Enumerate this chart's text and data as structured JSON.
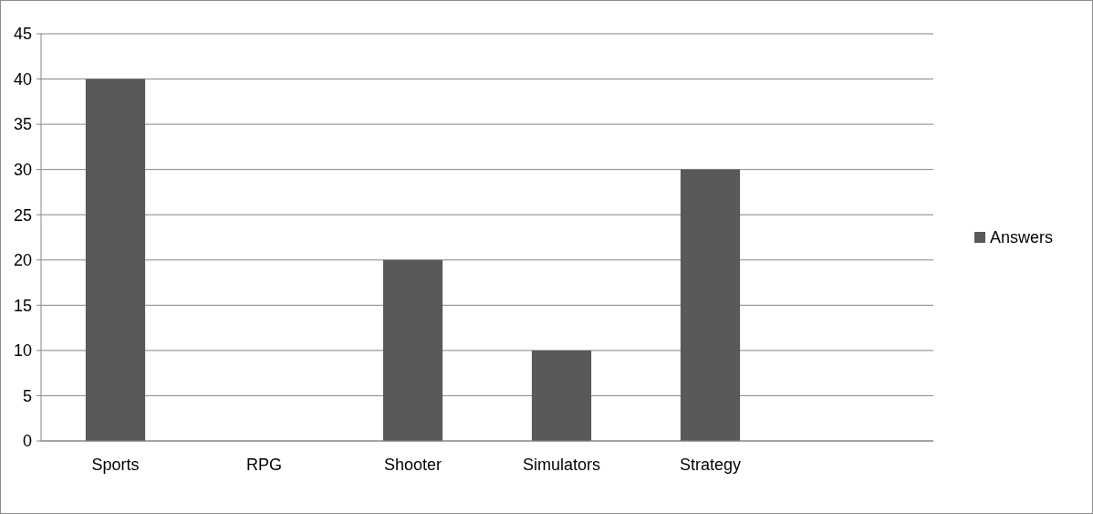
{
  "chart_data": {
    "type": "bar",
    "categories": [
      "Sports",
      "RPG",
      "Shooter",
      "Simulators",
      "Strategy",
      null
    ],
    "series": [
      {
        "name": "Answers",
        "color": "#595959",
        "values": [
          40,
          0,
          20,
          10,
          30,
          null
        ]
      }
    ],
    "ylim": [
      0,
      45
    ],
    "yticks": [
      0,
      5,
      10,
      15,
      20,
      25,
      30,
      35,
      40,
      45
    ],
    "grid": "y",
    "legend": "right"
  }
}
